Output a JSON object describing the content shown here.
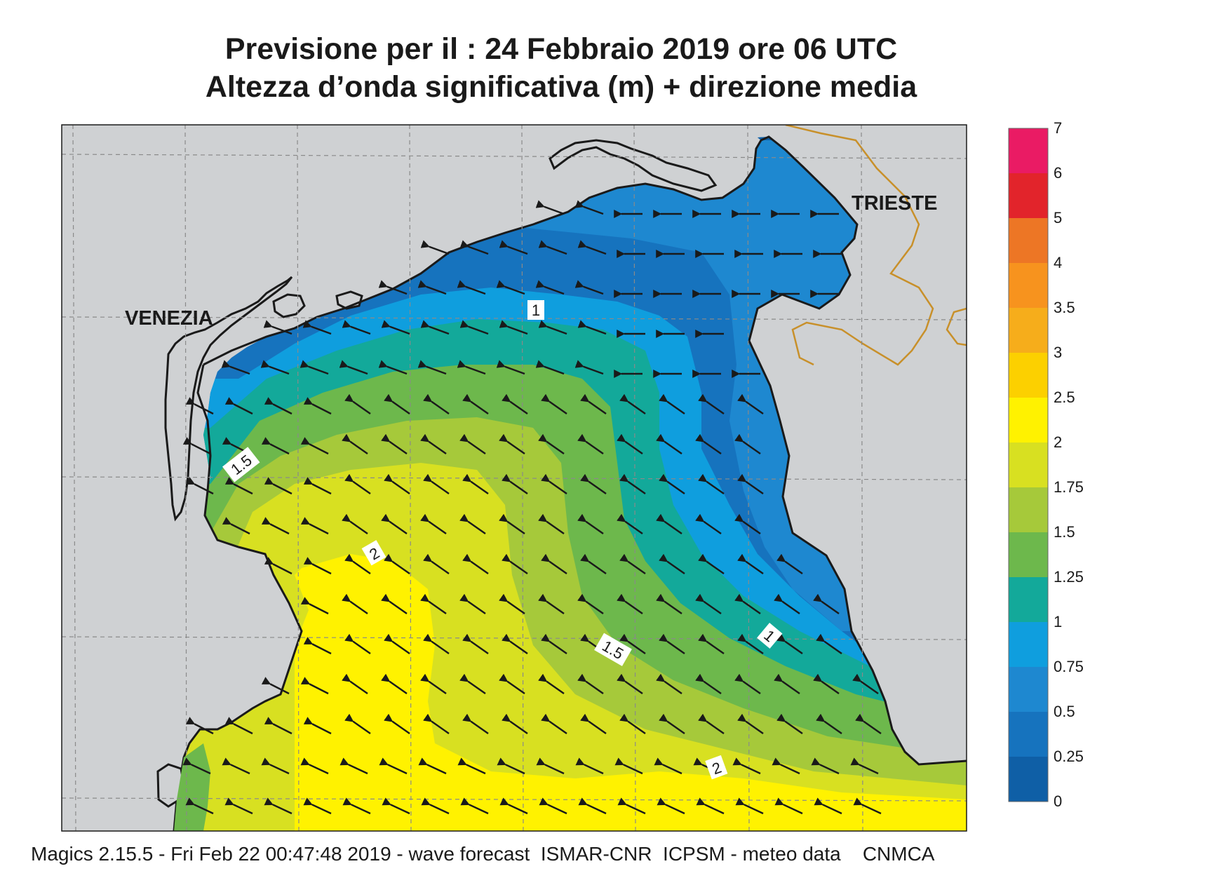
{
  "header": {
    "line1": "Previsione per il  :  24  Febbraio 2019   ore 06 UTC",
    "line2": "Altezza d’onda significativa (m) + direzione media"
  },
  "map": {
    "city_labels": [
      "VENEZIA",
      "TRIESTE"
    ],
    "contour_labels": [
      "1",
      "1.5",
      "2",
      "1.5",
      "1",
      "2"
    ]
  },
  "legend": {
    "ticks": [
      "7",
      "6",
      "5",
      "4",
      "3.5",
      "3",
      "2.5",
      "2",
      "1.75",
      "1.5",
      "1.25",
      "1",
      "0.75",
      "0.5",
      "0.25",
      "0"
    ],
    "colors": [
      "#ea1b64",
      "#e2242b",
      "#ed7625",
      "#f7931e",
      "#f6ad1b",
      "#fcd000",
      "#fff200",
      "#d8e021",
      "#a6c93a",
      "#6db84c",
      "#13a99a",
      "#0f9ede",
      "#1e88d0",
      "#1673be",
      "#0f5fa6"
    ]
  },
  "footer": {
    "text": "Magics 2.15.5 - Fri Feb 22 00:47:48 2019 - wave forecast  ISMAR-CNR  ICPSM - meteo data    CNMCA"
  },
  "colors": {
    "land": "#cfd1d3",
    "coast": "#1a1a1a",
    "border": "#c8902a",
    "grid": "#8a8a8a",
    "arrow": "#1a1a1a"
  }
}
